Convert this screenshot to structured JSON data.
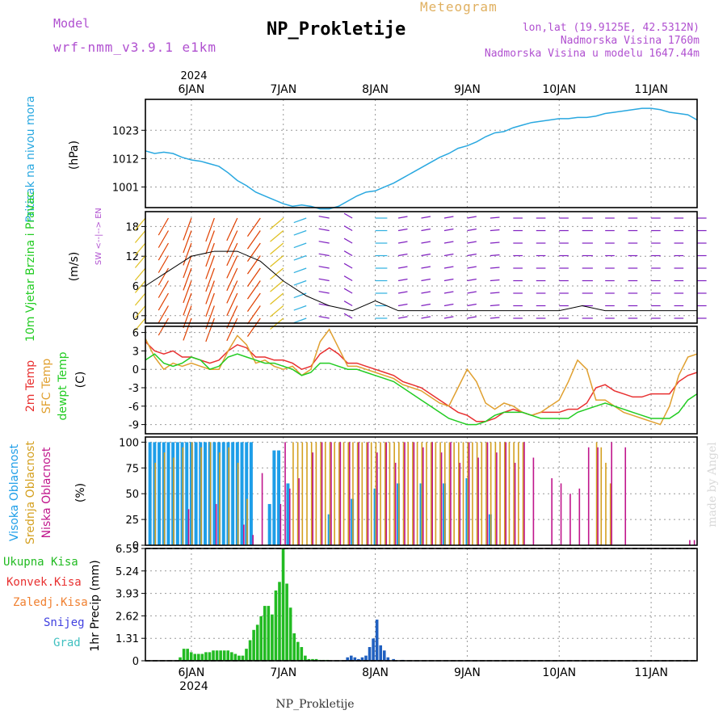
{
  "header": {
    "model_label": "Model",
    "model_name": "wrf-nmm_v3.9.1 e1km",
    "title": "NP_Prokletije",
    "subtitle": "Meteogram",
    "lonlat": "lon,lat (19.9125E, 42.5312N)",
    "altitude": "Nadmorska Visina 1760m",
    "model_altitude": "Nadmorska Visina u modelu 1647.44m"
  },
  "footer": {
    "station": "NP_Prokletije",
    "credit": "made by Angel"
  },
  "time_axis": {
    "year": "2024",
    "labels": [
      "6JAN",
      "7JAN",
      "8JAN",
      "9JAN",
      "10JAN",
      "11JAN"
    ],
    "positions_days": [
      1,
      2,
      3,
      4,
      5,
      6
    ],
    "range_days": [
      0.5,
      6.5
    ]
  },
  "colors": {
    "pressure": "#29a8e0",
    "t2m": "#e83030",
    "sfc": "#e0a030",
    "dewpt": "#22cc22",
    "high_cloud": "#1e9ee8",
    "mid_cloud": "#d4a020",
    "low_cloud": "#c0168c",
    "total_precip": "#22bb22",
    "snow": "#2060c0",
    "wind_strong": "#e04000",
    "wind_weak": "#8020c0"
  },
  "chart_data": [
    {
      "type": "line",
      "panel": "pressure",
      "ylabel": "Pritisak na nivou mora",
      "units": "(hPa)",
      "yticks": [
        "1023",
        "1012",
        "1001"
      ],
      "ylim": [
        993,
        1035
      ],
      "x": [
        0.5,
        0.6,
        0.7,
        0.8,
        0.9,
        1.0,
        1.1,
        1.2,
        1.3,
        1.4,
        1.5,
        1.6,
        1.7,
        1.8,
        1.9,
        2.0,
        2.1,
        2.2,
        2.3,
        2.4,
        2.5,
        2.6,
        2.7,
        2.8,
        2.9,
        3.0,
        3.1,
        3.2,
        3.3,
        3.4,
        3.5,
        3.6,
        3.7,
        3.8,
        3.9,
        4.0,
        4.1,
        4.2,
        4.3,
        4.4,
        4.5,
        4.6,
        4.7,
        4.8,
        4.9,
        5.0,
        5.1,
        5.2,
        5.3,
        5.4,
        5.5,
        5.6,
        5.7,
        5.8,
        5.9,
        6.0,
        6.1,
        6.2,
        6.3,
        6.4,
        6.5
      ],
      "values": [
        1015,
        1014,
        1014.5,
        1014,
        1012.5,
        1011.5,
        1011,
        1010,
        1009,
        1006.5,
        1003.5,
        1001.5,
        999,
        997.5,
        996,
        994.5,
        993.5,
        994,
        993.5,
        992.5,
        992.5,
        993.5,
        995.5,
        997.5,
        999,
        999.5,
        1001,
        1002.5,
        1004.5,
        1006.5,
        1008.5,
        1010.5,
        1012.5,
        1014,
        1016,
        1017,
        1018.5,
        1020.5,
        1022,
        1022.5,
        1024,
        1025,
        1026,
        1026.5,
        1027,
        1027.5,
        1027.5,
        1028,
        1028,
        1028.5,
        1029.5,
        1030,
        1030.5,
        1031,
        1031.5,
        1031.5,
        1031,
        1030,
        1029.5,
        1029,
        1027
      ]
    },
    {
      "type": "wind",
      "panel": "wind",
      "ylabel": "10m Vjetar Brzina i Pravac",
      "units": "(m/s)",
      "direction_legend": [
        "N",
        "W <--|--> E",
        "S"
      ],
      "yticks": [
        "18",
        "12",
        "6",
        "0"
      ],
      "ylim": [
        -1.5,
        21
      ],
      "x": [
        0.5,
        0.75,
        1.0,
        1.25,
        1.5,
        1.75,
        2.0,
        2.25,
        2.5,
        2.75,
        3.0,
        3.25,
        3.5,
        3.75,
        4.0,
        4.25,
        4.5,
        4.75,
        5.0,
        5.25,
        5.5,
        5.75,
        6.0,
        6.25,
        6.5
      ],
      "speed": [
        6,
        9,
        12,
        13,
        13,
        11,
        7,
        4,
        2,
        1,
        3,
        1,
        1,
        1,
        1,
        1,
        1,
        1,
        1,
        2,
        1,
        1,
        1,
        1,
        1
      ],
      "direction_deg": [
        220,
        210,
        200,
        200,
        205,
        215,
        230,
        250,
        280,
        300,
        90,
        80,
        80,
        80,
        80,
        85,
        90,
        90,
        90,
        90,
        90,
        90,
        90,
        90,
        90
      ]
    },
    {
      "type": "line",
      "panel": "temperature",
      "ylabel": [
        "2m Temp",
        "SFC Temp",
        "dewpt Temp"
      ],
      "units": "(C)",
      "yticks": [
        "6",
        "3",
        "0",
        "-3",
        "-6",
        "-9"
      ],
      "ylim": [
        -10.5,
        7
      ],
      "x": [
        0.5,
        0.6,
        0.7,
        0.8,
        0.9,
        1.0,
        1.1,
        1.2,
        1.3,
        1.4,
        1.5,
        1.6,
        1.7,
        1.8,
        1.9,
        2.0,
        2.1,
        2.2,
        2.3,
        2.4,
        2.5,
        2.6,
        2.7,
        2.8,
        2.9,
        3.0,
        3.1,
        3.2,
        3.3,
        3.4,
        3.5,
        3.6,
        3.7,
        3.8,
        3.9,
        4.0,
        4.1,
        4.2,
        4.3,
        4.4,
        4.5,
        4.6,
        4.7,
        4.8,
        4.9,
        5.0,
        5.1,
        5.2,
        5.3,
        5.4,
        5.5,
        5.6,
        5.7,
        5.8,
        5.9,
        6.0,
        6.1,
        6.2,
        6.3,
        6.4,
        6.5
      ],
      "series": [
        {
          "name": "2m Temp",
          "key": "t2m",
          "values": [
            4.5,
            3,
            2.5,
            3,
            2,
            2,
            1.5,
            1,
            1.5,
            3,
            4,
            3.5,
            2,
            2,
            1.5,
            1.5,
            1,
            0,
            0.5,
            2.5,
            3.5,
            2.5,
            1,
            1,
            0.5,
            0,
            -0.5,
            -1,
            -2,
            -2.5,
            -3,
            -4,
            -5,
            -6,
            -7,
            -7.5,
            -8.5,
            -8.5,
            -8,
            -7,
            -6.5,
            -7,
            -7.5,
            -7,
            -7,
            -7,
            -6.5,
            -6.5,
            -5.5,
            -3,
            -2.5,
            -3.5,
            -4,
            -4.5,
            -4.5,
            -4,
            -4,
            -4,
            -2,
            -1,
            -0.5
          ]
        },
        {
          "name": "SFC Temp",
          "key": "sfc",
          "values": [
            5,
            2,
            0,
            1,
            0.5,
            1,
            0.5,
            0,
            0,
            3,
            5.5,
            4,
            1,
            1.5,
            0.5,
            0,
            0.5,
            -1,
            0,
            4.5,
            6.5,
            3.5,
            0.5,
            0.5,
            0,
            -0.5,
            -1,
            -1.5,
            -2.5,
            -3,
            -3.5,
            -4.5,
            -5.5,
            -6,
            -3,
            0,
            -2,
            -5.5,
            -6.5,
            -5.5,
            -6,
            -7,
            -7.5,
            -7,
            -6,
            -5,
            -2,
            1.5,
            0,
            -5,
            -5,
            -6,
            -7,
            -7.5,
            -8,
            -8.5,
            -9,
            -6,
            -1,
            2,
            2.5
          ]
        },
        {
          "name": "dewpt Temp",
          "key": "dewpt",
          "values": [
            1.5,
            2.5,
            1,
            0.5,
            1,
            2,
            1.5,
            0,
            0.5,
            2,
            2.5,
            2,
            1.5,
            1,
            1,
            0.5,
            0,
            -1,
            -0.5,
            1,
            1,
            0.5,
            0,
            0,
            -0.5,
            -1,
            -1.5,
            -2,
            -3,
            -4,
            -5,
            -6,
            -7,
            -8,
            -8.5,
            -9,
            -9,
            -8.5,
            -7.5,
            -7,
            -7,
            -7,
            -7.5,
            -8,
            -8,
            -8,
            -8,
            -7,
            -6.5,
            -6,
            -5.5,
            -6,
            -6.5,
            -7,
            -7.5,
            -8,
            -8,
            -8,
            -7,
            -5,
            -4
          ]
        }
      ]
    },
    {
      "type": "bar",
      "panel": "clouds",
      "ylabel": [
        "Visoka Oblacnost",
        "Srednja Oblacnost",
        "Niska Oblacnost"
      ],
      "units": "(%)",
      "yticks": [
        "100",
        "75",
        "50",
        "25",
        "0"
      ],
      "ylim": [
        0,
        105
      ],
      "high": [
        [
          0.55,
          100
        ],
        [
          0.6,
          100
        ],
        [
          0.65,
          100
        ],
        [
          0.7,
          100
        ],
        [
          0.75,
          100
        ],
        [
          0.8,
          100
        ],
        [
          0.85,
          100
        ],
        [
          0.9,
          100
        ],
        [
          0.95,
          100
        ],
        [
          1.0,
          100
        ],
        [
          1.05,
          100
        ],
        [
          1.1,
          100
        ],
        [
          1.15,
          100
        ],
        [
          1.2,
          100
        ],
        [
          1.25,
          100
        ],
        [
          1.3,
          100
        ],
        [
          1.35,
          100
        ],
        [
          1.4,
          100
        ],
        [
          1.45,
          100
        ],
        [
          1.5,
          100
        ],
        [
          1.55,
          100
        ],
        [
          1.6,
          100
        ],
        [
          1.65,
          100
        ],
        [
          1.85,
          40
        ],
        [
          1.9,
          92
        ],
        [
          1.95,
          92
        ],
        [
          2.05,
          60
        ],
        [
          2.5,
          30
        ],
        [
          2.75,
          45
        ],
        [
          3.0,
          55
        ],
        [
          3.25,
          60
        ],
        [
          3.5,
          60
        ],
        [
          3.75,
          60
        ],
        [
          4.0,
          65
        ],
        [
          4.25,
          30
        ]
      ],
      "mid": [
        [
          0.6,
          80
        ],
        [
          0.7,
          90
        ],
        [
          0.8,
          85
        ],
        [
          0.9,
          95
        ],
        [
          1.0,
          100
        ],
        [
          1.1,
          95
        ],
        [
          1.2,
          100
        ],
        [
          1.3,
          90
        ],
        [
          1.4,
          95
        ],
        [
          1.5,
          80
        ],
        [
          1.6,
          45
        ],
        [
          2.1,
          100
        ],
        [
          2.15,
          100
        ],
        [
          2.2,
          100
        ],
        [
          2.25,
          100
        ],
        [
          2.3,
          100
        ],
        [
          2.35,
          100
        ],
        [
          2.4,
          100
        ],
        [
          2.45,
          100
        ],
        [
          2.5,
          100
        ],
        [
          2.55,
          100
        ],
        [
          2.6,
          100
        ],
        [
          2.65,
          100
        ],
        [
          2.7,
          100
        ],
        [
          2.75,
          100
        ],
        [
          2.8,
          100
        ],
        [
          2.85,
          100
        ],
        [
          2.9,
          100
        ],
        [
          2.95,
          100
        ],
        [
          3.0,
          100
        ],
        [
          3.05,
          100
        ],
        [
          3.1,
          100
        ],
        [
          3.15,
          100
        ],
        [
          3.2,
          100
        ],
        [
          3.25,
          100
        ],
        [
          3.3,
          100
        ],
        [
          3.35,
          100
        ],
        [
          3.4,
          100
        ],
        [
          3.45,
          100
        ],
        [
          3.5,
          100
        ],
        [
          3.55,
          100
        ],
        [
          3.6,
          100
        ],
        [
          3.65,
          100
        ],
        [
          3.7,
          100
        ],
        [
          3.75,
          100
        ],
        [
          3.8,
          100
        ],
        [
          3.85,
          100
        ],
        [
          3.9,
          100
        ],
        [
          3.95,
          100
        ],
        [
          4.0,
          100
        ],
        [
          4.05,
          100
        ],
        [
          4.1,
          100
        ],
        [
          4.15,
          100
        ],
        [
          4.2,
          100
        ],
        [
          4.25,
          100
        ],
        [
          4.3,
          100
        ],
        [
          4.35,
          100
        ],
        [
          4.4,
          100
        ],
        [
          4.45,
          100
        ],
        [
          4.5,
          100
        ],
        [
          4.55,
          100
        ],
        [
          4.6,
          100
        ],
        [
          5.4,
          100
        ],
        [
          5.45,
          95
        ],
        [
          5.5,
          80
        ],
        [
          5.55,
          60
        ]
      ],
      "low": [
        [
          0.95,
          35
        ],
        [
          1.25,
          40
        ],
        [
          1.55,
          20
        ],
        [
          1.65,
          10
        ],
        [
          1.75,
          70
        ],
        [
          1.95,
          40
        ],
        [
          2.0,
          100
        ],
        [
          2.05,
          55
        ],
        [
          2.15,
          65
        ],
        [
          2.3,
          90
        ],
        [
          2.4,
          100
        ],
        [
          2.5,
          100
        ],
        [
          2.6,
          100
        ],
        [
          2.7,
          100
        ],
        [
          2.8,
          100
        ],
        [
          2.9,
          100
        ],
        [
          3.0,
          90
        ],
        [
          3.1,
          100
        ],
        [
          3.2,
          80
        ],
        [
          3.3,
          100
        ],
        [
          3.4,
          100
        ],
        [
          3.5,
          95
        ],
        [
          3.6,
          100
        ],
        [
          3.7,
          90
        ],
        [
          3.8,
          100
        ],
        [
          3.9,
          80
        ],
        [
          4.0,
          100
        ],
        [
          4.1,
          85
        ],
        [
          4.2,
          100
        ],
        [
          4.3,
          90
        ],
        [
          4.4,
          100
        ],
        [
          4.5,
          80
        ],
        [
          4.6,
          100
        ],
        [
          4.7,
          85
        ],
        [
          4.9,
          65
        ],
        [
          5.0,
          60
        ],
        [
          5.1,
          50
        ],
        [
          5.2,
          55
        ],
        [
          5.3,
          95
        ],
        [
          5.4,
          95
        ],
        [
          5.55,
          100
        ],
        [
          5.7,
          95
        ],
        [
          6.4,
          5
        ],
        [
          6.45,
          5
        ]
      ]
    },
    {
      "type": "bar",
      "panel": "precip",
      "ylabel": "1hr Precip (mm)",
      "legend": [
        "Ukupna Kisa",
        "Konvek.Kisa",
        "Zaledj.Kisa",
        "Snijeg",
        "Grad"
      ],
      "yticks": [
        "6.55",
        "5.24",
        "3.93",
        "2.62",
        "1.31",
        "0"
      ],
      "ylim": [
        0,
        6.55
      ],
      "x": [
        0.88,
        0.92,
        0.96,
        1.0,
        1.04,
        1.08,
        1.12,
        1.16,
        1.2,
        1.24,
        1.28,
        1.32,
        1.36,
        1.4,
        1.44,
        1.48,
        1.52,
        1.56,
        1.6,
        1.64,
        1.68,
        1.72,
        1.76,
        1.8,
        1.84,
        1.88,
        1.92,
        1.96,
        2.0,
        2.04,
        2.08,
        2.12,
        2.16,
        2.2,
        2.24,
        2.28,
        2.32,
        2.36,
        2.4,
        2.44,
        2.48
      ],
      "total": [
        0.2,
        0.7,
        0.7,
        0.5,
        0.4,
        0.4,
        0.4,
        0.5,
        0.5,
        0.6,
        0.6,
        0.6,
        0.6,
        0.6,
        0.5,
        0.4,
        0.3,
        0.3,
        0.7,
        1.2,
        1.8,
        2.1,
        2.6,
        3.2,
        3.2,
        2.7,
        4.1,
        4.6,
        6.55,
        4.5,
        3.1,
        1.6,
        1.1,
        0.8,
        0.3,
        0.1,
        0.1,
        0.1,
        0.05,
        0.05,
        0.05
      ],
      "snow_x": [
        2.7,
        2.74,
        2.78,
        2.82,
        2.86,
        2.9,
        2.94,
        2.98,
        3.02,
        3.06,
        3.1,
        3.14,
        3.2,
        3.3
      ],
      "snow": [
        0.2,
        0.3,
        0.2,
        0.1,
        0.2,
        0.3,
        0.8,
        1.3,
        2.4,
        0.9,
        0.6,
        0.2,
        0.1,
        0.05
      ]
    }
  ]
}
